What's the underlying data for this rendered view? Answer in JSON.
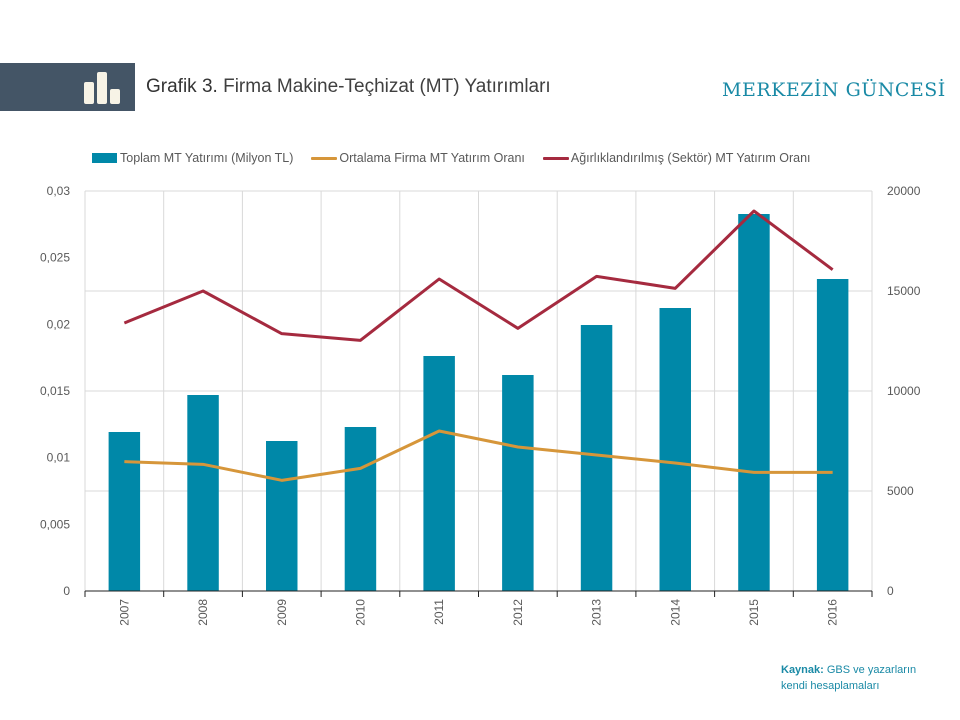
{
  "header": {
    "icon": "bar-chart-icon",
    "title_prefix": "Grafik 3.",
    "title_rest": "Firma Makine-Teçhizat (MT) Yatırımları",
    "brand": "MERKEZİN GÜNCESİ"
  },
  "colors": {
    "header_block": "#445566",
    "bars": "#0088a8",
    "orange_line": "#d6963a",
    "red_line": "#a52a3f",
    "brand": "#1a8aa6",
    "grid": "#d9d9d9"
  },
  "source": {
    "label": "Kaynak:",
    "text_line1": "GBS ve yazarların",
    "text_line2": "kendi hesaplamaları"
  },
  "chart_data": {
    "type": "bar",
    "title": "Grafik 3. Firma Makine-Teçhizat (MT) Yatırımları",
    "categories": [
      "2007",
      "2008",
      "2009",
      "2010",
      "2011",
      "2012",
      "2013",
      "2014",
      "2015",
      "2016"
    ],
    "legend_position": "top",
    "grid": true,
    "series": [
      {
        "name": "Toplam MT Yatırımı (Milyon TL)",
        "type": "bar",
        "axis": "right",
        "values": [
          7950,
          9800,
          7500,
          8200,
          11750,
          10800,
          13300,
          14150,
          18850,
          15600
        ]
      },
      {
        "name": "Ortalama Firma MT Yatırım Oranı",
        "type": "line",
        "axis": "left",
        "values": [
          0.0097,
          0.0095,
          0.0083,
          0.0092,
          0.012,
          0.0108,
          0.0102,
          0.0096,
          0.0089,
          0.0089
        ]
      },
      {
        "name": "Ağırlıklandırılmış (Sektör) MT Yatırım Oranı",
        "type": "line",
        "axis": "left",
        "values": [
          0.0201,
          0.0225,
          0.0193,
          0.0188,
          0.0234,
          0.0197,
          0.0236,
          0.0227,
          0.0285,
          0.0241
        ]
      }
    ],
    "left_axis": {
      "range": [
        0,
        0.03
      ],
      "ticks": [
        0,
        0.005,
        0.01,
        0.015,
        0.02,
        0.025,
        0.03
      ],
      "tick_labels": [
        "0",
        "0,005",
        "0,01",
        "0,015",
        "0,02",
        "0,025",
        "0,03"
      ]
    },
    "right_axis": {
      "range": [
        0,
        20000
      ],
      "ticks": [
        0,
        5000,
        10000,
        15000,
        20000
      ],
      "tick_labels": [
        "0",
        "5000",
        "10000",
        "15000",
        "20000"
      ]
    },
    "xlabel": "",
    "ylabel_left": "",
    "ylabel_right": ""
  }
}
